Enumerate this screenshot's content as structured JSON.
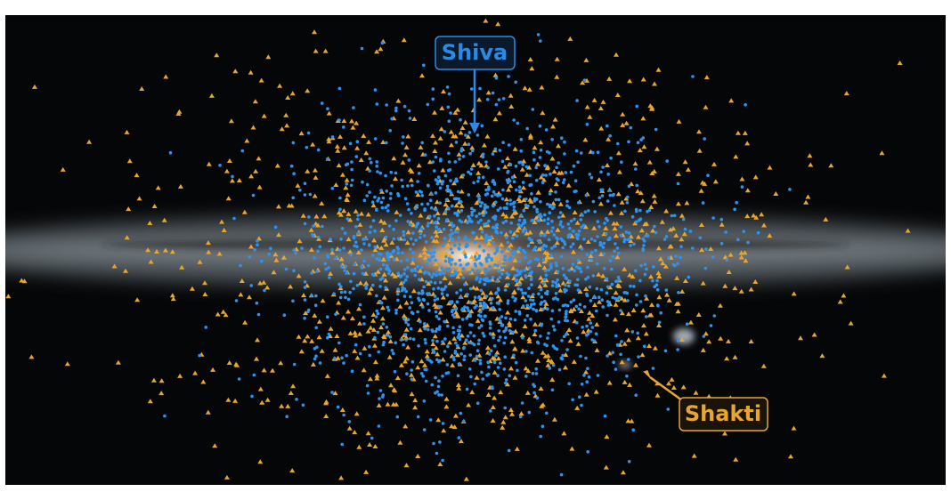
{
  "annotations": [
    {
      "label": "Shiva"
    },
    {
      "label": "Shakti"
    }
  ]
}
